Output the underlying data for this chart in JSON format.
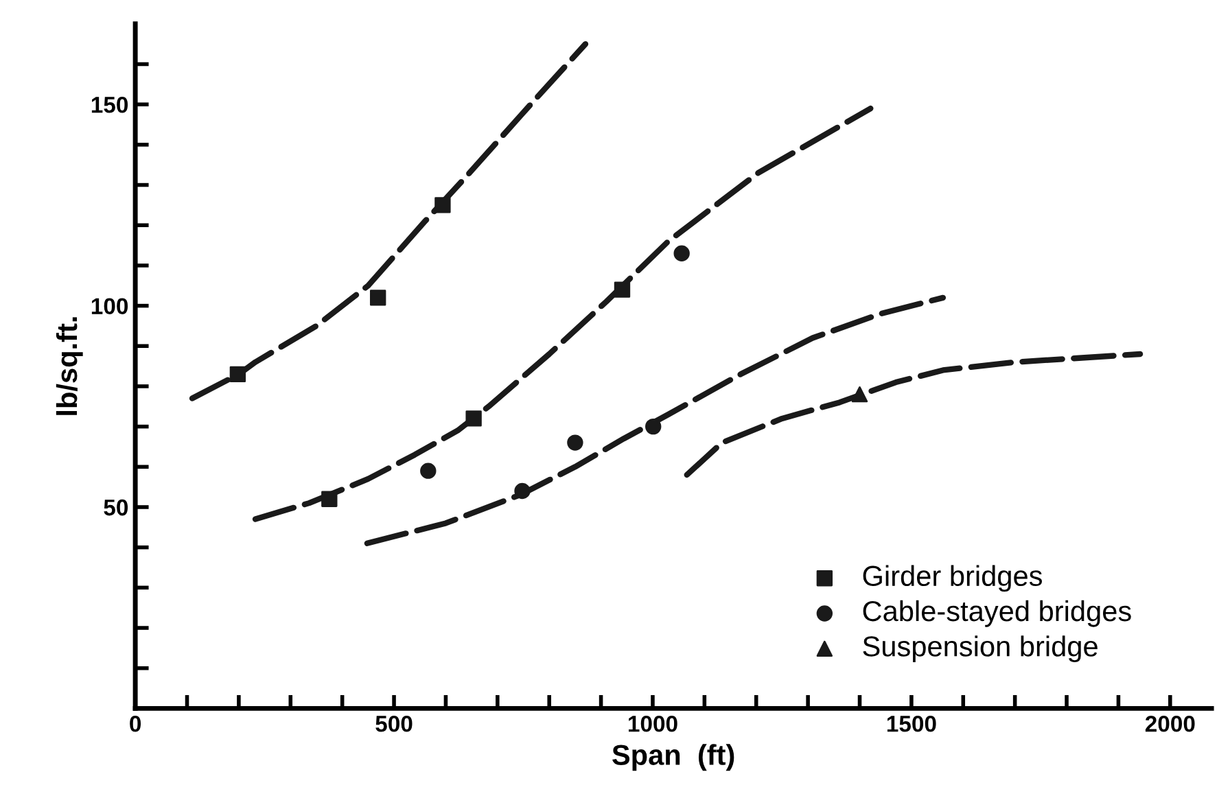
{
  "chart_data": {
    "type": "scatter",
    "xlabel": "Span  (ft)",
    "ylabel": "lb/sq.ft.",
    "xlim": [
      0,
      2080
    ],
    "ylim": [
      0,
      170
    ],
    "xticks": [
      0,
      {
        "value": 100,
        "label": null
      },
      {
        "value": 200,
        "label": null
      },
      {
        "value": 300,
        "label": null
      },
      {
        "value": 400,
        "label": null
      },
      500,
      {
        "value": 600,
        "label": null
      },
      {
        "value": 700,
        "label": null
      },
      {
        "value": 800,
        "label": null
      },
      {
        "value": 900,
        "label": null
      },
      1000,
      {
        "value": 1100,
        "label": null
      },
      {
        "value": 1200,
        "label": null
      },
      {
        "value": 1300,
        "label": null
      },
      {
        "value": 1400,
        "label": null
      },
      1500,
      {
        "value": 1600,
        "label": null
      },
      {
        "value": 1700,
        "label": null
      },
      {
        "value": 1800,
        "label": null
      },
      {
        "value": 1900,
        "label": null
      },
      2000
    ],
    "yticks": [
      {
        "value": 10,
        "label": null
      },
      {
        "value": 20,
        "label": null
      },
      {
        "value": 30,
        "label": null
      },
      {
        "value": 40,
        "label": null
      },
      50,
      {
        "value": 60,
        "label": null
      },
      {
        "value": 70,
        "label": null
      },
      {
        "value": 80,
        "label": null
      },
      {
        "value": 90,
        "label": null
      },
      100,
      {
        "value": 110,
        "label": null
      },
      {
        "value": 120,
        "label": null
      },
      {
        "value": 130,
        "label": null
      },
      {
        "value": 140,
        "label": null
      },
      150,
      {
        "value": 160,
        "label": null
      }
    ],
    "grid": false,
    "legend": "lower right",
    "series": [
      {
        "name": "Girder bridges",
        "marker": "square",
        "color": "#1a1a1a",
        "x": [
          198,
          375,
          469,
          594,
          654,
          941
        ],
        "values": [
          83,
          52,
          102,
          125,
          72,
          104
        ]
      },
      {
        "name": "Cable-stayed bridges",
        "marker": "circle",
        "color": "#1a1a1a",
        "x": [
          566,
          748,
          850,
          1001,
          1056
        ],
        "values": [
          59,
          54,
          66,
          70,
          113
        ]
      },
      {
        "name": "Suspension bridge",
        "marker": "triangle",
        "color": "#1a1a1a",
        "x": [
          1400
        ],
        "values": [
          78
        ]
      },
      {
        "type": "line",
        "line_style": "dashed",
        "color": "#1a1a1a",
        "x": [
          110,
          200,
          232,
          350,
          450,
          560,
          639,
          750,
          870
        ],
        "values": [
          77,
          83,
          86,
          95,
          105,
          121,
          132,
          148,
          165
        ]
      },
      {
        "type": "line",
        "line_style": "dashed",
        "color": "#1a1a1a",
        "x": [
          232,
          336,
          450,
          540,
          623,
          683,
          800,
          910,
          1030,
          1204,
          1421
        ],
        "values": [
          47,
          51,
          57,
          63,
          69,
          75,
          88,
          101,
          116,
          133,
          149
        ]
      },
      {
        "type": "line",
        "line_style": "dashed",
        "color": "#1a1a1a",
        "x": [
          448,
          600,
          743,
          850,
          944,
          1030,
          1170,
          1309,
          1440,
          1561
        ],
        "values": [
          41,
          46,
          53,
          60,
          67,
          73,
          83,
          92,
          98,
          102
        ]
      },
      {
        "type": "line",
        "line_style": "dashed",
        "color": "#1a1a1a",
        "x": [
          1066,
          1134,
          1250,
          1361,
          1470,
          1561,
          1700,
          1942
        ],
        "values": [
          58,
          66,
          72,
          76,
          81,
          84,
          86,
          88
        ]
      }
    ]
  }
}
